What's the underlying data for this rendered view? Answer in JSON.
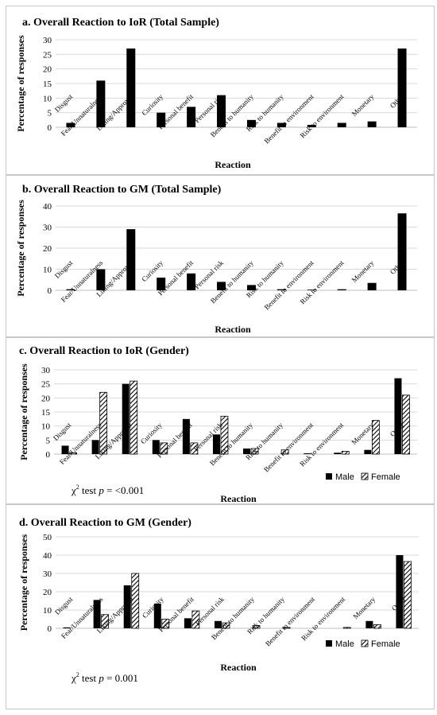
{
  "colors": {
    "bar": "#000000",
    "grid": "#d9d9d9",
    "axis": "#bfbfbf",
    "border": "#c8c8c8"
  },
  "chart_data": [
    {
      "type": "bar",
      "title": "a. Overall Reaction to IoR (Total Sample)",
      "xlabel": "Reaction",
      "ylabel": "Percentage of responses",
      "ylim": [
        0,
        30
      ],
      "yticks": [
        0,
        5,
        10,
        15,
        20,
        25,
        30
      ],
      "grid": true,
      "categories": [
        "Disgust",
        "Fear/Unnaturalness",
        "Liking/Approval",
        "Curiosity",
        "Personal benefit",
        "Personal risk",
        "Benefit to humanity",
        "Risk to humanity",
        "Benefit to environment",
        "Risk to environment",
        "Monetary",
        "Other"
      ],
      "series": [
        {
          "values": [
            1.5,
            16,
            27,
            5,
            7,
            11,
            2.5,
            1.5,
            0.8,
            1.5,
            2,
            27
          ],
          "pattern": "solid"
        }
      ]
    },
    {
      "type": "bar",
      "title": "b. Overall Reaction to GM (Total Sample)",
      "xlabel": "Reaction",
      "ylabel": "Percentage of responses",
      "ylim": [
        0,
        40
      ],
      "yticks": [
        0,
        10,
        20,
        30,
        40
      ],
      "grid": true,
      "categories": [
        "Disgust",
        "Fear/Unnaturalness",
        "Liking/Approval",
        "Curiosity",
        "Personal benefit",
        "Personal risk",
        "Benefit to humanity",
        "Risk to humanity",
        "Benefit to environment",
        "Risk to environment",
        "Monetary",
        "Other"
      ],
      "series": [
        {
          "values": [
            0.5,
            10,
            29,
            6,
            8,
            4,
            2.5,
            0.5,
            0.3,
            0.5,
            3.5,
            36.5
          ],
          "pattern": "solid"
        }
      ]
    },
    {
      "type": "bar",
      "title": "c. Overall Reaction to IoR (Gender)",
      "xlabel": "Reaction",
      "ylabel": "Percentage of responses",
      "ylim": [
        0,
        30
      ],
      "yticks": [
        0,
        5,
        10,
        15,
        20,
        25,
        30
      ],
      "grid": true,
      "legend_position": "bottom-right",
      "annotation": {
        "prefix": "χ",
        "sup": "2",
        "test": " test ",
        "p": "p",
        "value": " = <0.001"
      },
      "categories": [
        "Disgust",
        "Fear/Unnaturalness",
        "Liking/Approval",
        "Curiosity",
        "Personal benefit",
        "Personal risk",
        "Benefit to humanity",
        "Risk to humanity",
        "Benefit to environment",
        "Risk to environment",
        "Monetary",
        "Other"
      ],
      "series": [
        {
          "name": "Male",
          "values": [
            3,
            5,
            25,
            5,
            12.5,
            7,
            2,
            0,
            0.3,
            0.5,
            1.5,
            27
          ],
          "pattern": "solid"
        },
        {
          "name": "Female",
          "values": [
            0.5,
            22,
            26,
            4,
            4,
            13.5,
            2,
            1.5,
            0,
            1,
            12,
            21
          ],
          "pattern": "hatch"
        }
      ]
    },
    {
      "type": "bar",
      "title": "d. Overall Reaction to GM (Gender)",
      "xlabel": "Reaction",
      "ylabel": "Percentage of responses",
      "ylim": [
        0,
        50
      ],
      "yticks": [
        0,
        10,
        20,
        30,
        40,
        50
      ],
      "grid": true,
      "legend_position": "bottom-right",
      "annotation": {
        "prefix": "χ",
        "sup": "2",
        "test": " test ",
        "p": "p",
        "value": " = 0.001"
      },
      "categories": [
        "Disgust",
        "Fear/Unnaturalness",
        "Liking/Approval",
        "Curiosity",
        "Personal benefit",
        "Personal risk",
        "Benefit to humanity",
        "Risk to humanity",
        "Benefit to environment",
        "Risk to environment",
        "Monetary",
        "Other"
      ],
      "series": [
        {
          "name": "Male",
          "values": [
            0.5,
            15.5,
            23.5,
            13.5,
            5.5,
            4,
            0,
            0,
            0,
            0,
            4,
            40
          ],
          "pattern": "solid"
        },
        {
          "name": "Female",
          "values": [
            0,
            7.5,
            30,
            5,
            9.5,
            3,
            1.5,
            0.5,
            0,
            0.5,
            2,
            36.5
          ],
          "pattern": "hatch"
        }
      ]
    }
  ]
}
